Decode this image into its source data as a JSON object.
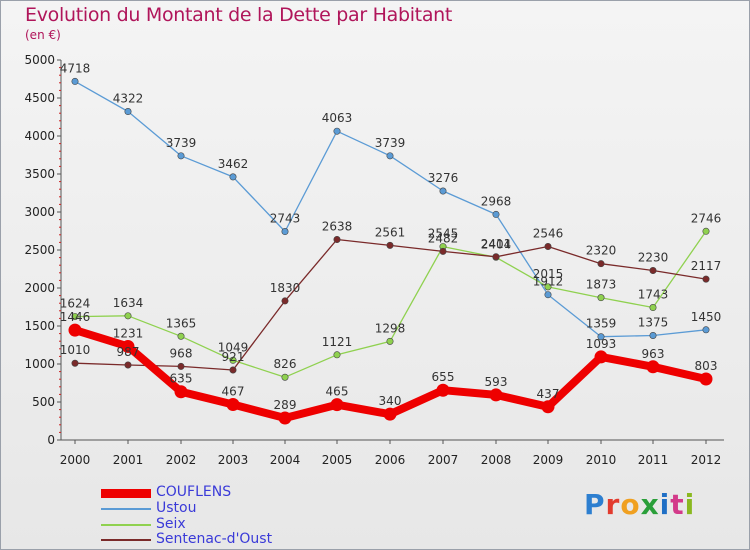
{
  "title": "Evolution du Montant de la Dette par Habitant",
  "subtitle": "(en €)",
  "logo_text": "Proxiti",
  "chart_data": {
    "type": "line",
    "title": "Evolution du Montant de la Dette par Habitant",
    "subtitle": "(en €)",
    "xlabel": "",
    "ylabel": "",
    "x": [
      "2000",
      "2001",
      "2002",
      "2003",
      "2004",
      "2005",
      "2006",
      "2007",
      "2008",
      "2009",
      "2010",
      "2011",
      "2012"
    ],
    "ylim": [
      0,
      5000
    ],
    "yticks": [
      "0",
      "500",
      "1000",
      "1500",
      "2000",
      "2500",
      "3000",
      "3500",
      "4000",
      "4500",
      "5000"
    ],
    "grid": false,
    "legend_position": "bottom-left",
    "series": [
      {
        "name": "COUFLENS",
        "color": "#ee0000",
        "style": "thick",
        "values": [
          1446,
          1231,
          635,
          467,
          289,
          465,
          340,
          655,
          593,
          437,
          1093,
          963,
          803
        ]
      },
      {
        "name": "Ustou",
        "color": "#5b9bd5",
        "style": "thin",
        "values": [
          4718,
          4322,
          3739,
          3462,
          2743,
          4063,
          3739,
          3276,
          2968,
          1912,
          1359,
          1375,
          1450
        ]
      },
      {
        "name": "Seix",
        "color": "#8fd14f",
        "style": "thin",
        "values": [
          1624,
          1634,
          1365,
          1049,
          826,
          1121,
          1298,
          2545,
          2404,
          2015,
          1873,
          1743,
          2746
        ]
      },
      {
        "name": "Sentenac-d'Oust",
        "color": "#7a2a2a",
        "style": "thin",
        "values": [
          1010,
          987,
          968,
          921,
          1830,
          2638,
          2561,
          2482,
          2411,
          2546,
          2320,
          2230,
          2117
        ]
      }
    ],
    "label_draw_order": [
      "Ustou",
      "Seix",
      "COUFLENS",
      "Sentenac-d'Oust"
    ]
  }
}
